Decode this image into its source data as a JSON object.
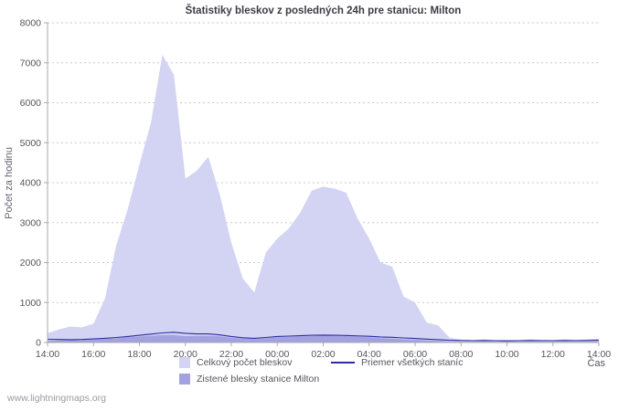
{
  "page": {
    "watermark": "www.lightningmaps.org"
  },
  "chart_data": {
    "type": "area",
    "title": "Štatistiky bleskov z posledných 24h pre stanicu: Milton",
    "xlabel": "Čas",
    "ylabel": "Počet za hodinu",
    "ylim": [
      0,
      8000
    ],
    "yticks": [
      0,
      1000,
      2000,
      3000,
      4000,
      5000,
      6000,
      7000,
      8000
    ],
    "xtick_labels": [
      "14:00",
      "16:00",
      "18:00",
      "20:00",
      "22:00",
      "00:00",
      "02:00",
      "04:00",
      "06:00",
      "08:00",
      "10:00",
      "12:00",
      "14:00"
    ],
    "xtick_step_hours": 2,
    "x_start_label": "14:00",
    "x_hours": [
      0,
      0.5,
      1,
      1.5,
      2,
      2.5,
      3,
      3.5,
      4,
      4.5,
      5,
      5.5,
      6,
      6.5,
      7,
      7.5,
      8,
      8.5,
      9,
      9.5,
      10,
      10.5,
      11,
      11.5,
      12,
      12.5,
      13,
      13.5,
      14,
      14.5,
      15,
      15.5,
      16,
      16.5,
      17,
      17.5,
      18,
      18.5,
      19,
      19.5,
      20,
      20.5,
      21,
      21.5,
      22,
      22.5,
      23,
      23.5,
      24
    ],
    "grid": "horizontal-dotted",
    "legend_position": "bottom",
    "series": [
      {
        "name": "Celkový počet bleskov",
        "type": "area",
        "color": "#d3d3f3",
        "values": [
          230,
          330,
          400,
          380,
          470,
          1100,
          2450,
          3350,
          4450,
          5500,
          7200,
          6700,
          4100,
          4300,
          4650,
          3700,
          2500,
          1600,
          1250,
          2250,
          2600,
          2850,
          3250,
          3800,
          3900,
          3850,
          3750,
          3100,
          2600,
          2000,
          1900,
          1150,
          1000,
          500,
          430,
          120,
          70,
          60,
          80,
          60,
          70,
          60,
          80,
          70,
          60,
          80,
          70,
          80,
          100
        ]
      },
      {
        "name": "Zistené blesky stanice Milton",
        "type": "area",
        "color": "#a2a2e0",
        "values": [
          40,
          55,
          70,
          60,
          70,
          90,
          110,
          130,
          150,
          170,
          190,
          185,
          160,
          165,
          170,
          155,
          120,
          100,
          90,
          110,
          130,
          140,
          150,
          160,
          170,
          165,
          160,
          140,
          130,
          110,
          100,
          80,
          70,
          50,
          40,
          20,
          15,
          15,
          20,
          15,
          15,
          15,
          20,
          15,
          15,
          20,
          15,
          20,
          25
        ]
      },
      {
        "name": "Priemer všetkých staníc",
        "type": "line",
        "color": "#2a2aa5",
        "values": [
          80,
          75,
          70,
          75,
          90,
          105,
          125,
          150,
          180,
          210,
          240,
          255,
          230,
          215,
          215,
          190,
          150,
          120,
          105,
          125,
          150,
          160,
          170,
          180,
          185,
          180,
          175,
          165,
          155,
          140,
          130,
          115,
          100,
          85,
          70,
          55,
          50,
          45,
          50,
          45,
          40,
          45,
          50,
          45,
          45,
          50,
          45,
          50,
          55
        ]
      }
    ]
  }
}
